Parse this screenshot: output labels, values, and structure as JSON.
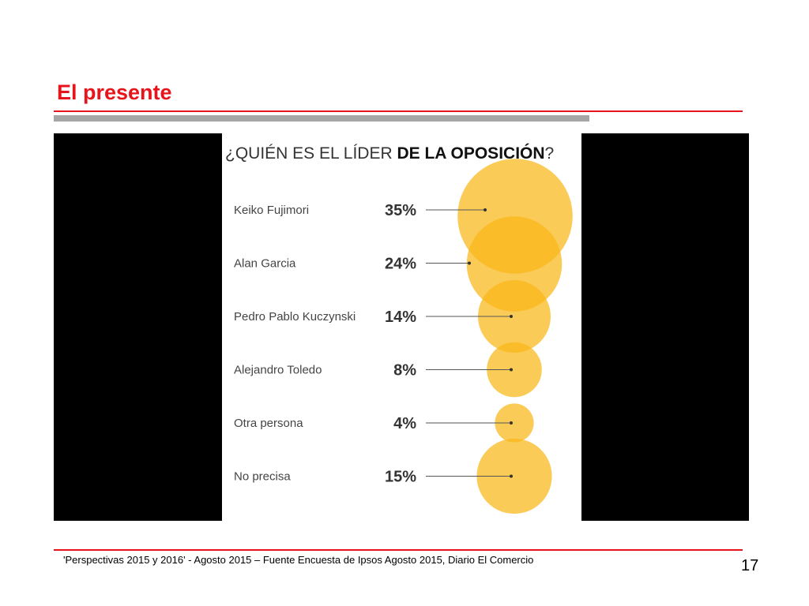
{
  "slide": {
    "title": "El presente",
    "footer": "'Perspectivas 2015 y 2016' - Agosto 2015 – Fuente Encuesta de Ipsos Agosto 2015, Diario El Comercio",
    "page_number": "17"
  },
  "colors": {
    "title_red": "#e8141b",
    "bubble": "#f9b717",
    "text_gray": "#444444",
    "panel": "#000000"
  },
  "chart_data": {
    "type": "bubble",
    "title_regular": "¿QUIÉN ES EL LÍDER ",
    "title_bold": "DE LA OPOSICIÓN",
    "title_end": "?",
    "categories": [
      "Keiko Fujimori",
      "Alan Garcia",
      "Pedro Pablo Kuczynski",
      "Alejandro Toledo",
      "Otra persona",
      "No precisa"
    ],
    "values": [
      35,
      24,
      14,
      8,
      4,
      15
    ],
    "value_labels": [
      "35%",
      "24%",
      "14%",
      "8%",
      "4%",
      "15%"
    ],
    "unit": "%"
  }
}
